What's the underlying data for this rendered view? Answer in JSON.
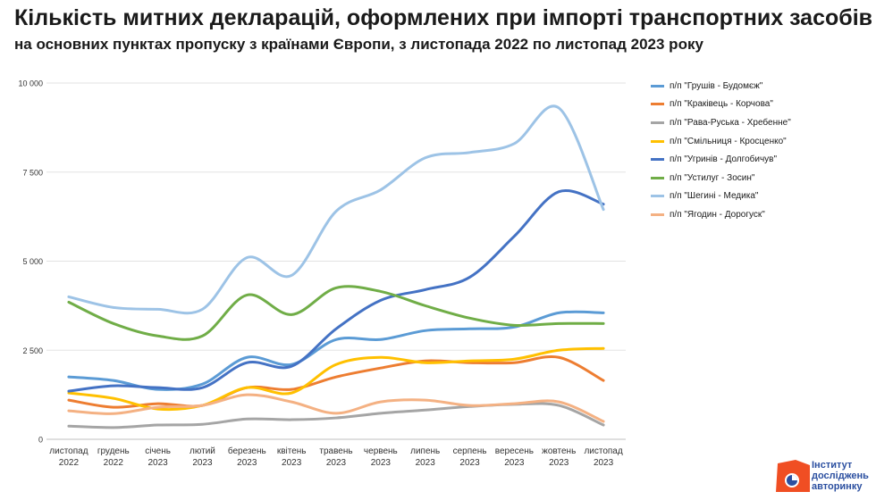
{
  "header": {
    "title": "Кількість митних декларацій, оформлених при імпорті транспортних засобів",
    "subtitle": "на основних пунктах пропуску з країнами Європи, з листопада 2022 по листопад 2023 року"
  },
  "logo": {
    "lines": [
      "Інститут",
      "досліджень",
      "авторинку"
    ],
    "color": "#f04e23"
  },
  "chart_data": {
    "type": "line",
    "categories": [
      [
        "листопад",
        "2022"
      ],
      [
        "грудень",
        "2022"
      ],
      [
        "січень",
        "2023"
      ],
      [
        "лютий",
        "2023"
      ],
      [
        "березень",
        "2023"
      ],
      [
        "квітень",
        "2023"
      ],
      [
        "травень",
        "2023"
      ],
      [
        "червень",
        "2023"
      ],
      [
        "липень",
        "2023"
      ],
      [
        "серпень",
        "2023"
      ],
      [
        "вересень",
        "2023"
      ],
      [
        "жовтень",
        "2023"
      ],
      [
        "листопад",
        "2023"
      ]
    ],
    "ylim": [
      0,
      10000
    ],
    "yticks": [
      0,
      2500,
      5000,
      7500,
      10000
    ],
    "ytick_labels": [
      "0",
      "2 500",
      "5 000",
      "7 500",
      "10 000"
    ],
    "grid": true,
    "legend": "right",
    "series": [
      {
        "name": "п/п \"Грушів - Будомєж\"",
        "color": "#5b9bd5",
        "values": [
          1750,
          1650,
          1400,
          1550,
          2300,
          2100,
          2800,
          2800,
          3050,
          3100,
          3150,
          3550,
          3550
        ]
      },
      {
        "name": "п/п \"Краківець - Корчова\"",
        "color": "#ed7d31",
        "values": [
          1100,
          900,
          1000,
          950,
          1450,
          1400,
          1750,
          2000,
          2200,
          2150,
          2150,
          2300,
          1650
        ]
      },
      {
        "name": "п/п \"Рава-Руська - Хребенне\"",
        "color": "#a5a5a5",
        "values": [
          370,
          330,
          400,
          420,
          570,
          550,
          600,
          730,
          820,
          920,
          980,
          950,
          400
        ]
      },
      {
        "name": "п/п \"Смільниця - Кросценко\"",
        "color": "#ffc000",
        "values": [
          1300,
          1150,
          850,
          950,
          1450,
          1300,
          2100,
          2300,
          2150,
          2200,
          2250,
          2500,
          2550
        ]
      },
      {
        "name": "п/п \"Угринів - Долгобичув\"",
        "color": "#4472c4",
        "values": [
          1350,
          1500,
          1450,
          1450,
          2150,
          2050,
          3100,
          3900,
          4200,
          4550,
          5700,
          6950,
          6600
        ]
      },
      {
        "name": "п/п \"Устилуг - Зосин\"",
        "color": "#70ad47",
        "values": [
          3850,
          3250,
          2900,
          2900,
          4050,
          3500,
          4250,
          4150,
          3750,
          3400,
          3200,
          3250,
          3250
        ]
      },
      {
        "name": "п/п \"Шегині - Медика\"",
        "color": "#9dc3e6",
        "values": [
          4000,
          3700,
          3650,
          3650,
          5100,
          4600,
          6400,
          7000,
          7900,
          8050,
          8300,
          9300,
          6450
        ]
      },
      {
        "name": "п/п \"Ягодин - Дорогуск\"",
        "color": "#f4b183",
        "values": [
          800,
          720,
          900,
          950,
          1250,
          1050,
          730,
          1050,
          1100,
          950,
          1000,
          1050,
          500
        ]
      }
    ]
  }
}
